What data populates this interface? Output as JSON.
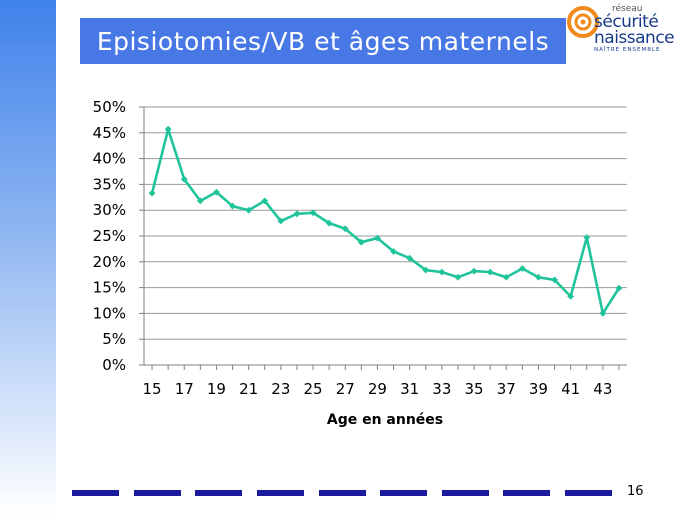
{
  "slide": {
    "title": "Episiotomies/VB et âges maternels",
    "page_number": "16"
  },
  "logo": {
    "line1": "réseau",
    "line2": "sécurité",
    "line3": "naissance",
    "tagline": "NAÎTRE ENSEMBLE"
  },
  "colors": {
    "accent": "#4877e6",
    "line": "#1fc49b",
    "dash": "#1a1a9c",
    "logo_orange": "#f08a1c"
  },
  "chart_data": {
    "type": "line",
    "title": "",
    "xlabel": "Age en années",
    "ylabel": "",
    "x": [
      15,
      16,
      17,
      18,
      19,
      20,
      21,
      22,
      23,
      24,
      25,
      26,
      27,
      28,
      29,
      30,
      31,
      32,
      33,
      34,
      35,
      36,
      37,
      38,
      39,
      40,
      41,
      42,
      43,
      44
    ],
    "x_tick_labels": [
      "15",
      "17",
      "19",
      "21",
      "23",
      "25",
      "27",
      "29",
      "31",
      "33",
      "35",
      "37",
      "39",
      "41",
      "43"
    ],
    "series": [
      {
        "values": [
          0.333,
          0.457,
          0.36,
          0.318,
          0.335,
          0.308,
          0.3,
          0.318,
          0.279,
          0.293,
          0.295,
          0.275,
          0.264,
          0.238,
          0.246,
          0.22,
          0.207,
          0.184,
          0.18,
          0.17,
          0.182,
          0.18,
          0.17,
          0.187,
          0.17,
          0.165,
          0.133,
          0.247,
          0.1,
          0.149
        ]
      }
    ],
    "y_tick_labels": [
      "0%",
      "5%",
      "10%",
      "15%",
      "20%",
      "25%",
      "30%",
      "35%",
      "40%",
      "45%",
      "50%"
    ],
    "ylim": [
      0,
      0.5
    ],
    "grid": true,
    "legend": "none"
  }
}
